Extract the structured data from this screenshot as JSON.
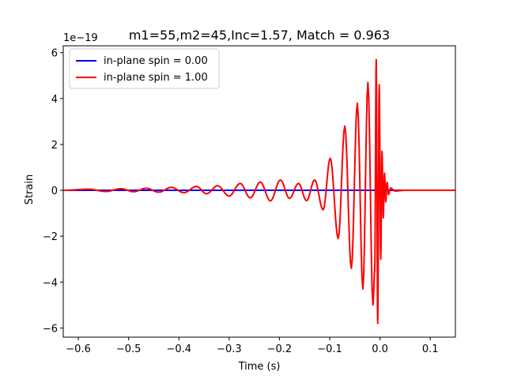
{
  "chart_data": {
    "type": "line",
    "title": "m1=55,m2=45,Inc=1.57, Match = 0.963",
    "xlabel": "Time (s)",
    "ylabel": "Strain",
    "y_offset_label": "1e−19",
    "xlim": [
      -0.63,
      0.15
    ],
    "ylim": [
      -6.4,
      6.3
    ],
    "x_ticks": [
      {
        "value": -0.6,
        "label": "−0.6"
      },
      {
        "value": -0.5,
        "label": "−0.5"
      },
      {
        "value": -0.4,
        "label": "−0.4"
      },
      {
        "value": -0.3,
        "label": "−0.3"
      },
      {
        "value": -0.2,
        "label": "−0.2"
      },
      {
        "value": -0.1,
        "label": "−0.1"
      },
      {
        "value": 0.0,
        "label": "0.0"
      },
      {
        "value": 0.1,
        "label": "0.1"
      }
    ],
    "y_ticks": [
      {
        "value": -6,
        "label": "−6"
      },
      {
        "value": -4,
        "label": "−4"
      },
      {
        "value": -2,
        "label": "−2"
      },
      {
        "value": 0,
        "label": "0"
      },
      {
        "value": 2,
        "label": "2"
      },
      {
        "value": 4,
        "label": "4"
      },
      {
        "value": 6,
        "label": "6"
      }
    ],
    "grid": false,
    "legend_position": "top-left",
    "series": [
      {
        "name": "in-plane spin = 0.00",
        "color": "#0000ff",
        "x": [
          -0.63,
          -0.3,
          0.0,
          0.15
        ],
        "y": [
          0,
          0,
          0,
          0
        ]
      },
      {
        "name": "in-plane spin = 1.00",
        "color": "#ff0000",
        "extrema": [
          {
            "x": -0.63,
            "y": 0
          },
          {
            "x": -0.58,
            "y": 0.05
          },
          {
            "x": -0.545,
            "y": -0.05
          },
          {
            "x": -0.515,
            "y": 0.07
          },
          {
            "x": -0.49,
            "y": -0.06
          },
          {
            "x": -0.465,
            "y": 0.09
          },
          {
            "x": -0.44,
            "y": -0.08
          },
          {
            "x": -0.415,
            "y": 0.13
          },
          {
            "x": -0.39,
            "y": -0.1
          },
          {
            "x": -0.365,
            "y": 0.17
          },
          {
            "x": -0.345,
            "y": -0.15
          },
          {
            "x": -0.323,
            "y": 0.2
          },
          {
            "x": -0.3,
            "y": -0.25
          },
          {
            "x": -0.278,
            "y": 0.3
          },
          {
            "x": -0.258,
            "y": -0.33
          },
          {
            "x": -0.238,
            "y": 0.36
          },
          {
            "x": -0.218,
            "y": -0.46
          },
          {
            "x": -0.198,
            "y": 0.45
          },
          {
            "x": -0.18,
            "y": -0.35
          },
          {
            "x": -0.162,
            "y": 0.3
          },
          {
            "x": -0.146,
            "y": -0.45
          },
          {
            "x": -0.13,
            "y": 0.45
          },
          {
            "x": -0.113,
            "y": -0.85
          },
          {
            "x": -0.099,
            "y": 1.4
          },
          {
            "x": -0.083,
            "y": -2.1
          },
          {
            "x": -0.07,
            "y": 2.8
          },
          {
            "x": -0.057,
            "y": -3.4
          },
          {
            "x": -0.045,
            "y": 3.8
          },
          {
            "x": -0.034,
            "y": -4.3
          },
          {
            "x": -0.024,
            "y": 4.7
          },
          {
            "x": -0.014,
            "y": -5.0
          },
          {
            "x": -0.0105,
            "y": -3.5
          },
          {
            "x": -0.0075,
            "y": 5.7
          },
          {
            "x": -0.0045,
            "y": -5.8
          },
          {
            "x": -0.0015,
            "y": 4.6
          },
          {
            "x": 0.0015,
            "y": -3.0
          },
          {
            "x": 0.004,
            "y": 1.7
          },
          {
            "x": 0.0065,
            "y": -1.2
          },
          {
            "x": 0.009,
            "y": 0.75
          },
          {
            "x": 0.0115,
            "y": -0.5
          },
          {
            "x": 0.014,
            "y": 0.35
          },
          {
            "x": 0.017,
            "y": -0.18
          },
          {
            "x": 0.021,
            "y": 0.1
          },
          {
            "x": 0.03,
            "y": -0.03
          },
          {
            "x": 0.05,
            "y": 0
          },
          {
            "x": 0.15,
            "y": 0
          }
        ]
      }
    ]
  }
}
